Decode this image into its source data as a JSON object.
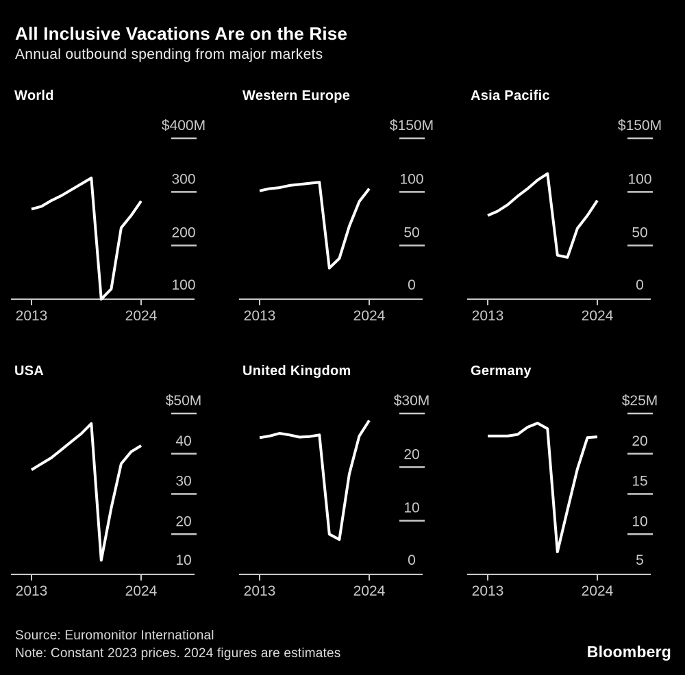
{
  "header": {
    "title": "All Inclusive Vacations Are on the Rise",
    "subtitle": "Annual outbound spending from major markets"
  },
  "footer": {
    "source": "Source: Euromonitor International",
    "note": "Note: Constant 2023 prices. 2024 figures are estimates",
    "brand": "Bloomberg"
  },
  "colors": {
    "background": "#000000",
    "title_text": "#ffffff",
    "subtitle_text": "#ededed",
    "axis_text": "#c9c9c9",
    "axis_line": "#c9c9c9",
    "series_line": "#ffffff",
    "footer_text": "#dcdcdc"
  },
  "x_ticks": [
    "2013",
    "2024"
  ],
  "chart_data": [
    {
      "title": "World",
      "type": "line",
      "unit": "USD millions",
      "years": [
        2013,
        2014,
        2015,
        2016,
        2017,
        2018,
        2019,
        2020,
        2021,
        2022,
        2023,
        2024
      ],
      "values": [
        268,
        273,
        284,
        293,
        304,
        315,
        326,
        100,
        119,
        233,
        256,
        283
      ],
      "y_ticks": [
        {
          "label": "$400M",
          "value": 400
        },
        {
          "label": "300",
          "value": 300
        },
        {
          "label": "200",
          "value": 200
        },
        {
          "label": "100",
          "value": 100
        }
      ],
      "ylim": [
        100,
        400
      ]
    },
    {
      "title": "Western Europe",
      "type": "line",
      "unit": "USD millions",
      "years": [
        2013,
        2014,
        2015,
        2016,
        2017,
        2018,
        2019,
        2020,
        2021,
        2022,
        2023,
        2024
      ],
      "values": [
        101,
        103,
        104,
        106,
        107,
        108,
        109,
        29,
        38,
        68,
        91,
        103
      ],
      "y_ticks": [
        {
          "label": "$150M",
          "value": 150
        },
        {
          "label": "100",
          "value": 100
        },
        {
          "label": "50",
          "value": 50
        },
        {
          "label": "0",
          "value": 0
        }
      ],
      "ylim": [
        0,
        150
      ]
    },
    {
      "title": "Asia Pacific",
      "type": "line",
      "unit": "USD millions",
      "years": [
        2013,
        2014,
        2015,
        2016,
        2017,
        2018,
        2019,
        2020,
        2021,
        2022,
        2023,
        2024
      ],
      "values": [
        78,
        82,
        88,
        96,
        103,
        111,
        117,
        41,
        39,
        66,
        78,
        92
      ],
      "y_ticks": [
        {
          "label": "$150M",
          "value": 150
        },
        {
          "label": "100",
          "value": 100
        },
        {
          "label": "50",
          "value": 50
        },
        {
          "label": "0",
          "value": 0
        }
      ],
      "ylim": [
        0,
        150
      ]
    },
    {
      "title": "USA",
      "type": "line",
      "unit": "USD millions",
      "years": [
        2013,
        2014,
        2015,
        2016,
        2017,
        2018,
        2019,
        2020,
        2021,
        2022,
        2023,
        2024
      ],
      "values": [
        36,
        37.5,
        39,
        41,
        43,
        45,
        47.5,
        13.5,
        26.5,
        37.5,
        40.5,
        42
      ],
      "y_ticks": [
        {
          "label": "$50M",
          "value": 50
        },
        {
          "label": "40",
          "value": 40
        },
        {
          "label": "30",
          "value": 30
        },
        {
          "label": "20",
          "value": 20
        },
        {
          "label": "10",
          "value": 10
        }
      ],
      "ylim": [
        10,
        50
      ]
    },
    {
      "title": "United Kingdom",
      "type": "line",
      "unit": "USD millions",
      "years": [
        2013,
        2014,
        2015,
        2016,
        2017,
        2018,
        2019,
        2020,
        2021,
        2022,
        2023,
        2024
      ],
      "values": [
        25.5,
        25.8,
        26.3,
        26,
        25.6,
        25.7,
        26,
        7.5,
        6.5,
        18.7,
        25.8,
        28.7
      ],
      "y_ticks": [
        {
          "label": "$30M",
          "value": 30
        },
        {
          "label": "20",
          "value": 20
        },
        {
          "label": "10",
          "value": 10
        },
        {
          "label": "0",
          "value": 0
        }
      ],
      "ylim": [
        0,
        30
      ]
    },
    {
      "title": "Germany",
      "type": "line",
      "unit": "USD millions",
      "years": [
        2013,
        2014,
        2015,
        2016,
        2017,
        2018,
        2019,
        2020,
        2021,
        2022,
        2023,
        2024
      ],
      "values": [
        22.2,
        22.2,
        22.2,
        22.4,
        23.3,
        23.8,
        23.1,
        7.8,
        13,
        18.1,
        22,
        22.1
      ],
      "y_ticks": [
        {
          "label": "$25M",
          "value": 25
        },
        {
          "label": "20",
          "value": 20
        },
        {
          "label": "15",
          "value": 15
        },
        {
          "label": "10",
          "value": 10
        },
        {
          "label": "5",
          "value": 5
        }
      ],
      "ylim": [
        5,
        25
      ]
    }
  ]
}
